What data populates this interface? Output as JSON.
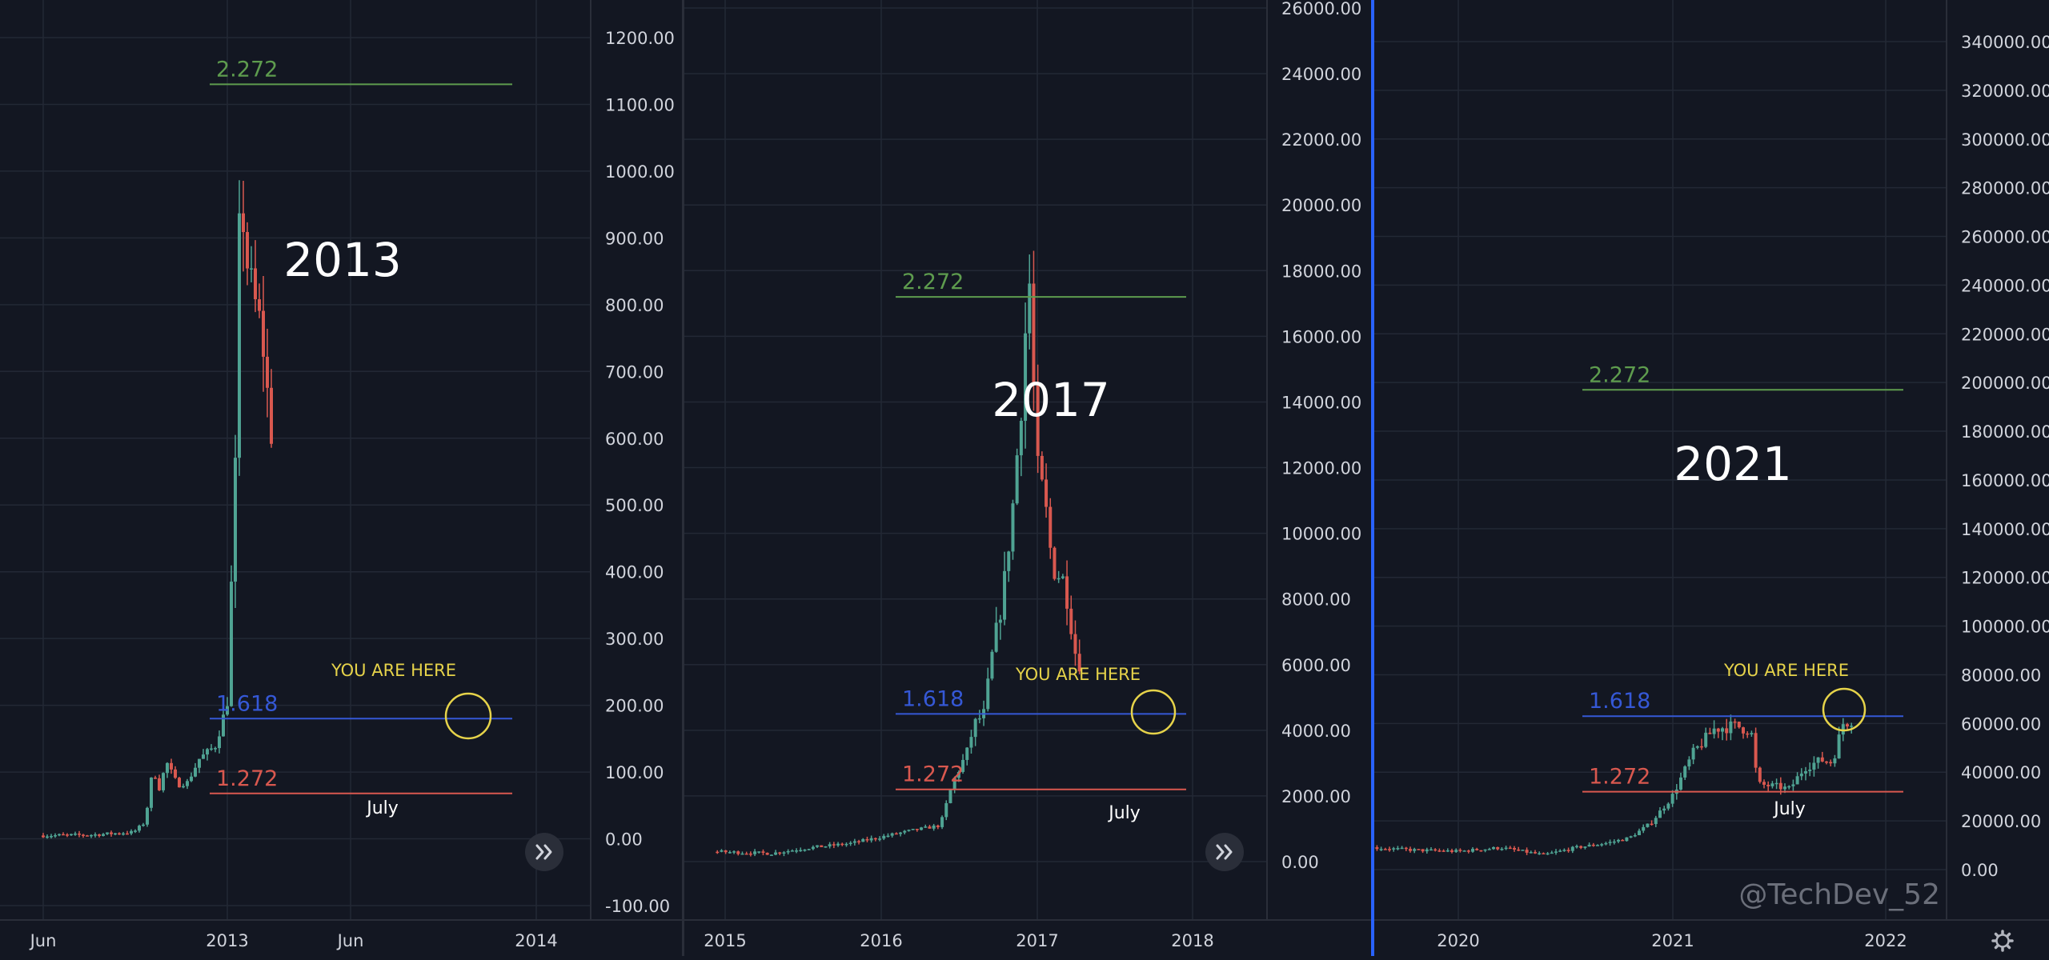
{
  "colors": {
    "background": "#131722",
    "grid": "#232835",
    "axis_text": "#d1d4dc",
    "up_candle": "#4fa393",
    "down_candle": "#d9584f",
    "fib_2272": "#5e9c4e",
    "fib_1618": "#3558d6",
    "fib_1272": "#d9584f",
    "highlight_circle": "#e6d34a",
    "you_are_here_text": "#e6d34a",
    "separator_blue": "#2962ff",
    "watermark": "#6b6f7a"
  },
  "watermark": "@TechDev_52",
  "icons": {
    "scroll_button": "double-chevron-right-icon",
    "settings": "gear-icon"
  },
  "chart_data": [
    {
      "type": "candlestick",
      "title": "2013",
      "y_tick_labels": [
        "-100.00",
        "0.00",
        "100.00",
        "200.00",
        "300.00",
        "400.00",
        "500.00",
        "600.00",
        "700.00",
        "800.00",
        "900.00",
        "1000.00",
        "1100.00",
        "1200.00"
      ],
      "x_tick_labels": [
        "Jun",
        "2013",
        "Jun",
        "2014"
      ],
      "ylim": [
        -100,
        1200
      ],
      "fib_levels": [
        {
          "label": "2.272",
          "value": 1130
        },
        {
          "label": "1.618",
          "value": 180
        },
        {
          "label": "1.272",
          "value": 68
        }
      ],
      "annotation": "YOU ARE HERE",
      "month_label": "July",
      "shape": [
        [
          0,
          5
        ],
        [
          0.3,
          6
        ],
        [
          0.55,
          10
        ],
        [
          0.62,
          25
        ],
        [
          0.67,
          110
        ],
        [
          0.7,
          70
        ],
        [
          0.75,
          115
        ],
        [
          0.82,
          80
        ],
        [
          0.88,
          85
        ],
        [
          0.95,
          120
        ],
        [
          1.05,
          140
        ],
        [
          1.12,
          205
        ],
        [
          1.17,
          560
        ],
        [
          1.2,
          1000
        ],
        [
          1.23,
          880
        ],
        [
          1.27,
          820
        ],
        [
          1.33,
          760
        ],
        [
          1.37,
          650
        ],
        [
          1.4,
          580
        ]
      ]
    },
    {
      "type": "candlestick",
      "title": "2017",
      "y_tick_labels": [
        "0.00",
        "2000.00",
        "4000.00",
        "6000.00",
        "8000.00",
        "10000.00",
        "12000.00",
        "14000.00",
        "16000.00",
        "18000.00",
        "20000.00",
        "22000.00",
        "24000.00",
        "26000.00"
      ],
      "x_tick_labels": [
        "2015",
        "2016",
        "2017",
        "2018"
      ],
      "ylim": [
        -1000,
        26000
      ],
      "fib_levels": [
        {
          "label": "2.272",
          "value": 17200
        },
        {
          "label": "1.618",
          "value": 4500
        },
        {
          "label": "1.272",
          "value": 2200
        }
      ],
      "annotation": "YOU ARE HERE",
      "month_label": "July",
      "shape": [
        [
          -0.05,
          300
        ],
        [
          0.3,
          250
        ],
        [
          0.5,
          400
        ],
        [
          0.8,
          550
        ],
        [
          1,
          750
        ],
        [
          1.2,
          950
        ],
        [
          1.38,
          1100
        ],
        [
          1.46,
          2400
        ],
        [
          1.55,
          3300
        ],
        [
          1.6,
          4200
        ],
        [
          1.66,
          4500
        ],
        [
          1.72,
          6500
        ],
        [
          1.78,
          8000
        ],
        [
          1.85,
          11000
        ],
        [
          1.9,
          14000
        ],
        [
          1.95,
          18000
        ],
        [
          2,
          12000
        ],
        [
          2.05,
          11000
        ],
        [
          2.1,
          9000
        ],
        [
          2.18,
          8500
        ],
        [
          2.25,
          6300
        ],
        [
          2.3,
          5800
        ]
      ]
    },
    {
      "type": "candlestick",
      "title": "2021",
      "y_tick_labels": [
        "0.00",
        "20000.00",
        "40000.00",
        "60000.00",
        "80000.00",
        "100000.00",
        "120000.00",
        "140000.00",
        "160000.00",
        "180000.00",
        "200000.00",
        "220000.00",
        "240000.00",
        "260000.00",
        "280000.00",
        "300000.00",
        "320000.00",
        "340000.00"
      ],
      "x_tick_labels": [
        "2020",
        "2021",
        "2022"
      ],
      "ylim": [
        -10000,
        350000
      ],
      "fib_levels": [
        {
          "label": "2.272",
          "value": 197000
        },
        {
          "label": "1.618",
          "value": 63000
        },
        {
          "label": "1.272",
          "value": 32000
        }
      ],
      "annotation": "YOU ARE HERE",
      "month_label": "July",
      "shape": [
        [
          -0.4,
          9000
        ],
        [
          -0.2,
          8000
        ],
        [
          0,
          7500
        ],
        [
          0.2,
          9000
        ],
        [
          0.4,
          6000
        ],
        [
          0.55,
          9000
        ],
        [
          0.7,
          11000
        ],
        [
          0.8,
          13000
        ],
        [
          0.9,
          19000
        ],
        [
          1,
          30000
        ],
        [
          1.1,
          48000
        ],
        [
          1.2,
          58000
        ],
        [
          1.3,
          59000
        ],
        [
          1.37,
          57000
        ],
        [
          1.4,
          35000
        ],
        [
          1.5,
          34000
        ],
        [
          1.55,
          33000
        ],
        [
          1.62,
          42000
        ],
        [
          1.7,
          45000
        ],
        [
          1.75,
          44000
        ],
        [
          1.8,
          60000
        ],
        [
          1.85,
          62000
        ]
      ]
    }
  ]
}
